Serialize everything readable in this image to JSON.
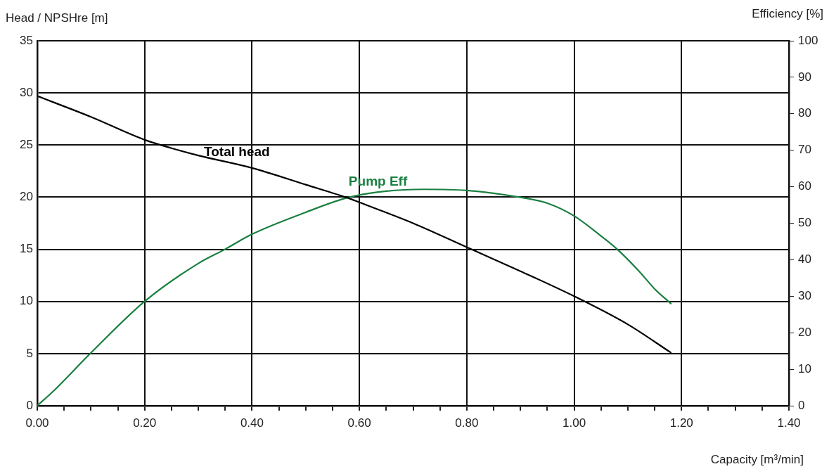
{
  "chart_data": {
    "type": "line",
    "xlabel": "Capacity [m³/min]",
    "ylabel": "Head / NPSHre [m]",
    "y2label": "Efficiency [%]",
    "xlim": [
      0,
      1.4
    ],
    "ylim": [
      0,
      35
    ],
    "y2lim": [
      0,
      100
    ],
    "xticks": [
      {
        "value": 0,
        "label": "0.00"
      },
      {
        "value": 0.05,
        "label": null
      },
      {
        "value": 0.1,
        "label": null
      },
      {
        "value": 0.15,
        "label": null
      },
      {
        "value": 0.2,
        "label": "0.20"
      },
      {
        "value": 0.25,
        "label": null
      },
      {
        "value": 0.3,
        "label": null
      },
      {
        "value": 0.35,
        "label": null
      },
      {
        "value": 0.4,
        "label": "0.40"
      },
      {
        "value": 0.45,
        "label": null
      },
      {
        "value": 0.5,
        "label": null
      },
      {
        "value": 0.55,
        "label": null
      },
      {
        "value": 0.6,
        "label": "0.60"
      },
      {
        "value": 0.65,
        "label": null
      },
      {
        "value": 0.7,
        "label": null
      },
      {
        "value": 0.75,
        "label": null
      },
      {
        "value": 0.8,
        "label": "0.80"
      },
      {
        "value": 0.85,
        "label": null
      },
      {
        "value": 0.9,
        "label": null
      },
      {
        "value": 0.95,
        "label": null
      },
      {
        "value": 1.0,
        "label": "1.00"
      },
      {
        "value": 1.05,
        "label": null
      },
      {
        "value": 1.1,
        "label": null
      },
      {
        "value": 1.15,
        "label": null
      },
      {
        "value": 1.2,
        "label": "1.20"
      },
      {
        "value": 1.25,
        "label": null
      },
      {
        "value": 1.3,
        "label": null
      },
      {
        "value": 1.35,
        "label": null
      },
      {
        "value": 1.4,
        "label": "1.40"
      }
    ],
    "yticks": [
      0,
      5,
      10,
      15,
      20,
      25,
      30,
      35
    ],
    "y2ticks": [
      0,
      10,
      20,
      30,
      40,
      50,
      60,
      70,
      80,
      90,
      100
    ],
    "grid": true,
    "legend": false,
    "marker": "none",
    "line_style": "solid",
    "series": [
      {
        "name": "Total head",
        "color": "#000000",
        "x": [
          0,
          0.1,
          0.2,
          0.25,
          0.3,
          0.4,
          0.5,
          0.58,
          0.6,
          0.7,
          0.8,
          0.9,
          1.0,
          1.1,
          1.18
        ],
        "values": [
          29.7,
          27.7,
          25.5,
          24.7,
          24.0,
          22.8,
          21.2,
          19.9,
          19.5,
          17.5,
          15.2,
          12.9,
          10.5,
          7.8,
          5.1
        ]
      },
      {
        "name": "Pump Eff",
        "color": "#1a8040",
        "axis": "y2",
        "x": [
          0,
          0.03,
          0.1,
          0.2,
          0.3,
          0.35,
          0.4,
          0.5,
          0.58,
          0.65,
          0.72,
          0.8,
          0.9,
          0.95,
          1.0,
          1.05,
          1.08,
          1.12,
          1.15,
          1.18
        ],
        "values": [
          0,
          4,
          14.5,
          28.6,
          39,
          42.9,
          47,
          53,
          57.1,
          58.8,
          59.3,
          59,
          57.1,
          55.5,
          52,
          46.5,
          42.9,
          37,
          32,
          28
        ]
      }
    ]
  }
}
